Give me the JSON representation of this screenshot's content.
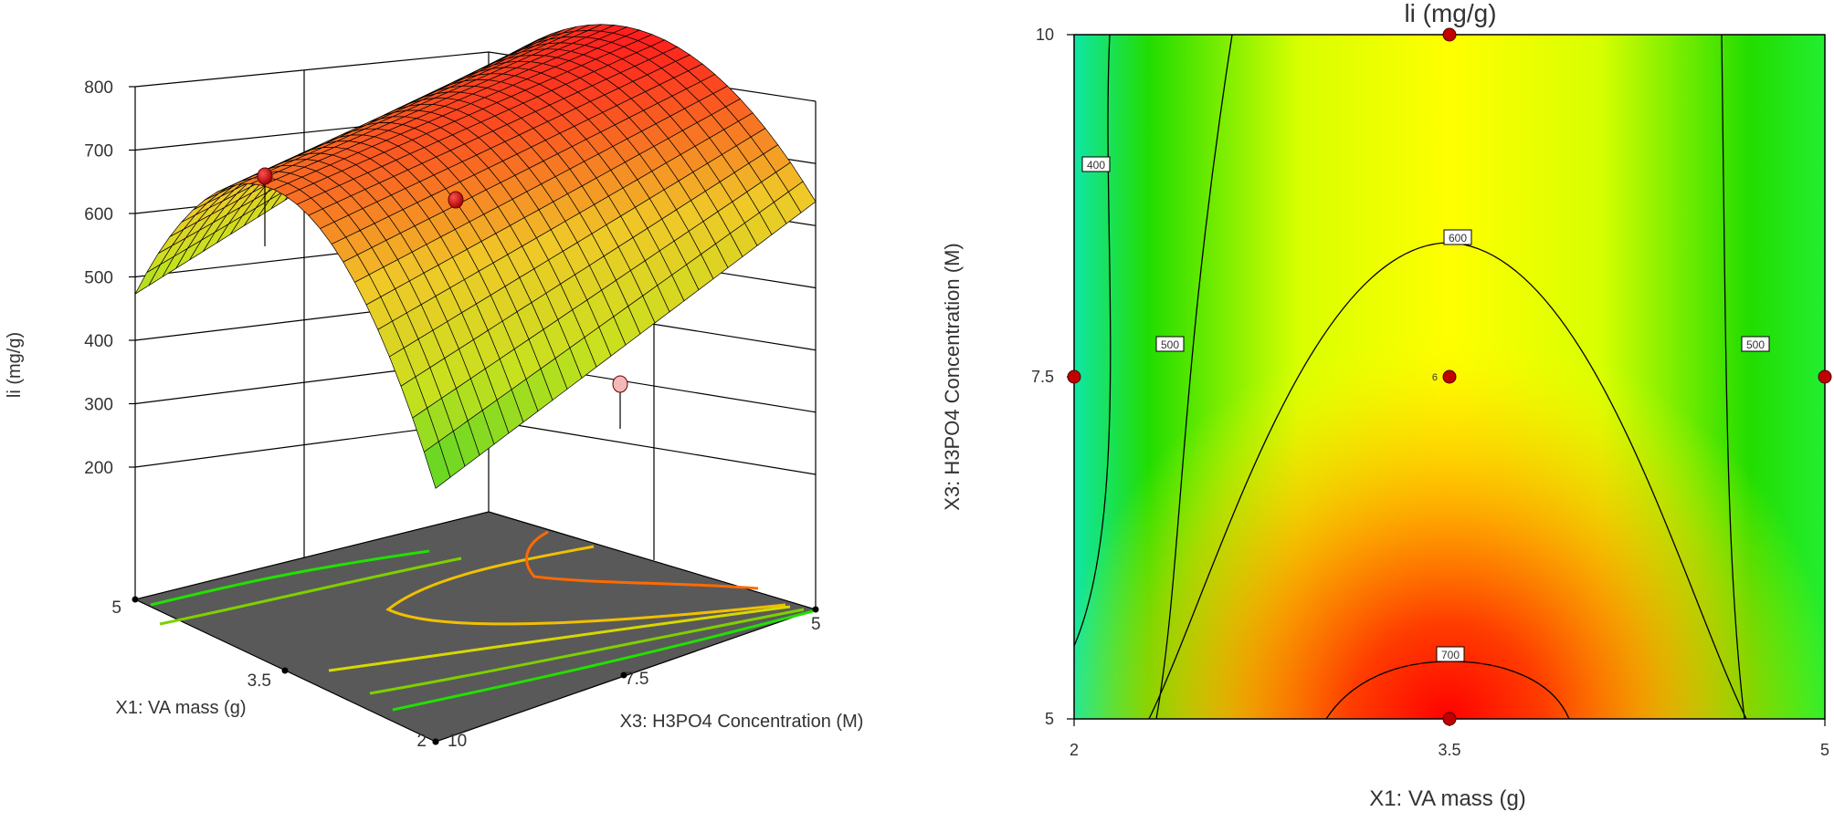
{
  "chart_data": [
    {
      "type": "surface",
      "zlabel": "li (mg/g)",
      "xlabel": "X1: VA mass (g)",
      "ylabel": "X3: H3PO4 Concentration (M)",
      "z_ticks": [
        "200",
        "300",
        "400",
        "500",
        "600",
        "700",
        "800"
      ],
      "zlim": [
        200,
        800
      ],
      "x_ticks": [
        "2",
        "3.5",
        "5"
      ],
      "y_ticks": [
        "10",
        "7.5",
        "5"
      ],
      "xlim": [
        2,
        5
      ],
      "ylim": [
        5,
        10
      ],
      "design_points": [
        {
          "x": 3.5,
          "y": 5,
          "z": 700,
          "above_surface": true
        },
        {
          "x": 3.5,
          "y": 7.5,
          "z": 640,
          "above_surface": true
        },
        {
          "x": 2,
          "y": 10,
          "z": 320,
          "above_surface": false
        }
      ],
      "floor_contours": [
        400,
        500,
        600,
        700
      ],
      "colors": {
        "low": "#00e0c0",
        "mid": "#e0e000",
        "high": "#ff2020",
        "floor": "#595959"
      }
    },
    {
      "type": "contour",
      "title": "li (mg/g)",
      "xlabel": "X1: VA mass (g)",
      "ylabel": "X3: H3PO4 Concentration (M)",
      "x_ticks": [
        "2",
        "3.5",
        "5"
      ],
      "y_ticks": [
        "5",
        "7.5",
        "10"
      ],
      "xlim": [
        2,
        5
      ],
      "ylim": [
        5,
        10
      ],
      "contour_levels": [
        "400",
        "500",
        "500",
        "600",
        "700"
      ],
      "center_label": "6",
      "design_points": [
        {
          "x": 3.5,
          "y": 10
        },
        {
          "x": 2,
          "y": 7.5
        },
        {
          "x": 3.5,
          "y": 7.5
        },
        {
          "x": 5,
          "y": 7.5
        },
        {
          "x": 3.5,
          "y": 5
        }
      ],
      "colors": {
        "low": "#00e8b0",
        "green": "#22dd00",
        "yellow": "#ffff00",
        "orange": "#ffa500",
        "high": "#ff0000",
        "point": "#c00000"
      }
    }
  ]
}
